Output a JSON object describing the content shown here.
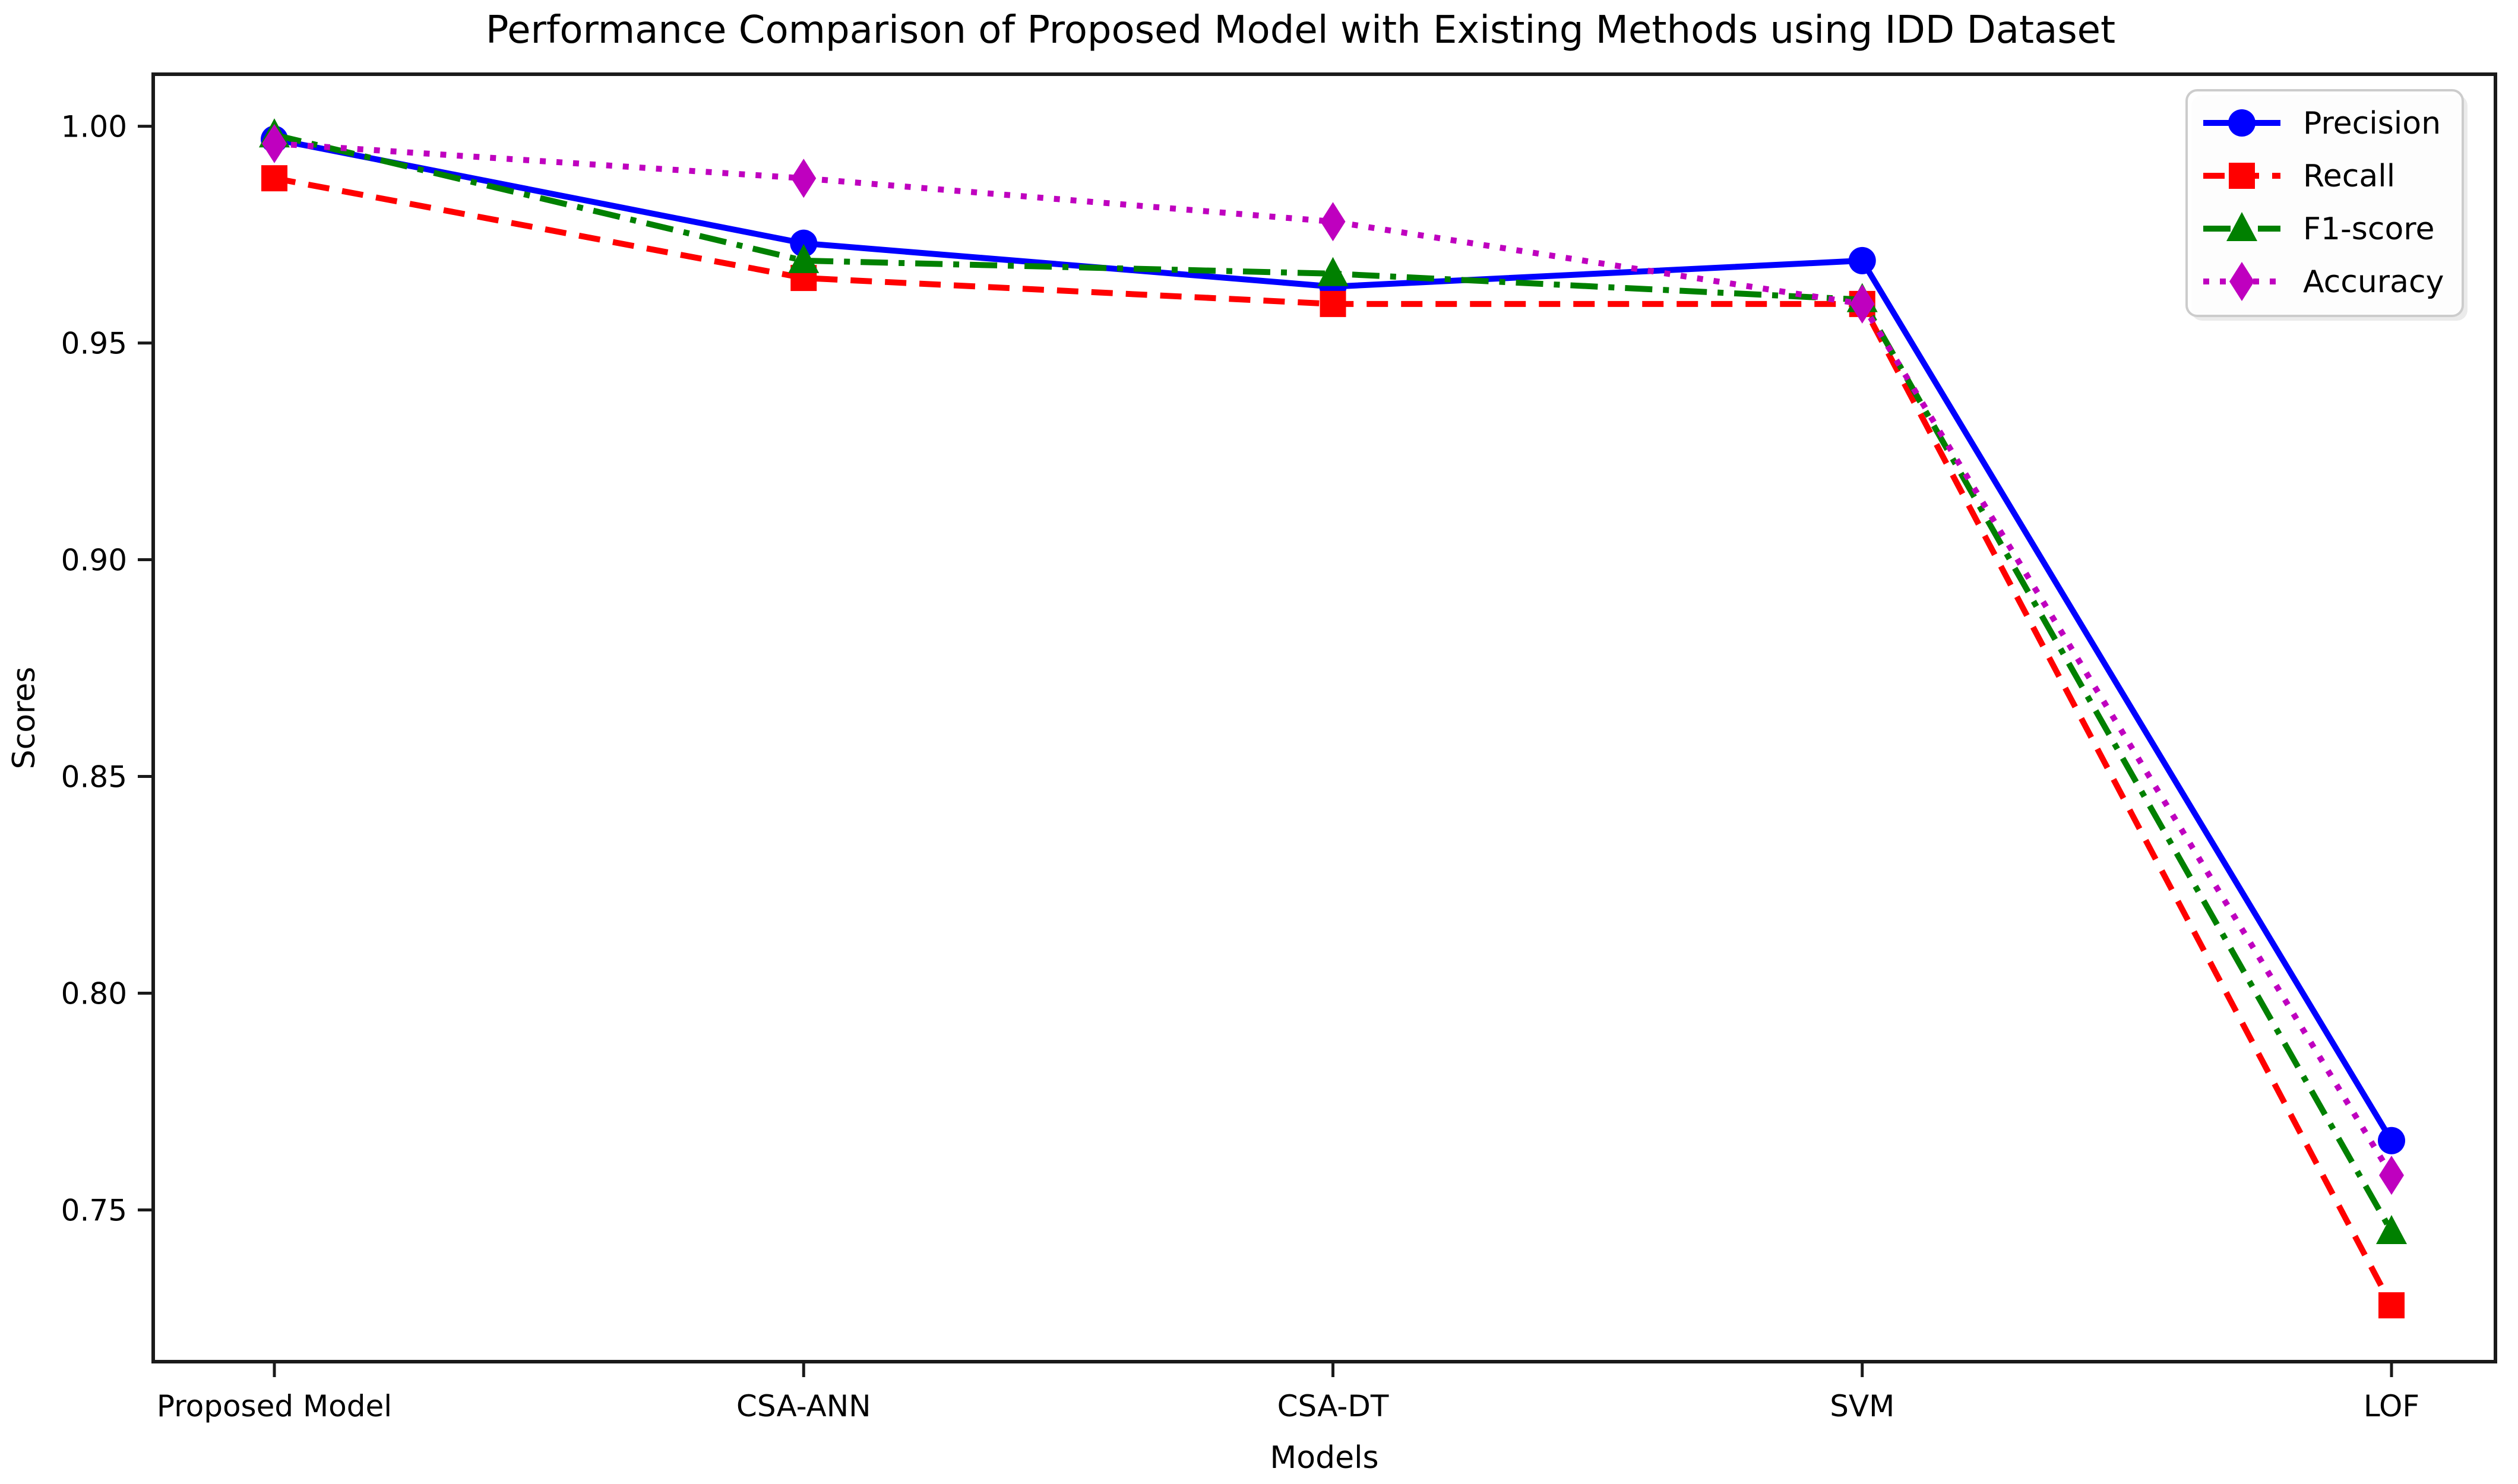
{
  "chart_data": {
    "type": "line",
    "title": "Performance Comparison of Proposed Model with Existing Methods using IDD Dataset",
    "xlabel": "Models",
    "ylabel": "Scores",
    "categories": [
      "Proposed Model",
      "CSA-ANN",
      "CSA-DT",
      "SVM",
      "LOF"
    ],
    "ytick_labels": [
      "1.00",
      "0.95",
      "0.90",
      "0.85",
      "0.80",
      "0.75"
    ],
    "yticks": [
      1.0,
      0.95,
      0.9,
      0.85,
      0.8,
      0.75
    ],
    "ylim": [
      0.715,
      1.012
    ],
    "grid": false,
    "legend_position": "upper right",
    "series": [
      {
        "name": "Precision",
        "color": "#0000ff",
        "linestyle": "solid",
        "marker": "circle",
        "values": [
          0.997,
          0.973,
          0.963,
          0.969,
          0.766
        ]
      },
      {
        "name": "Recall",
        "color": "#ff0000",
        "linestyle": "dashed",
        "marker": "square",
        "values": [
          0.988,
          0.965,
          0.959,
          0.959,
          0.728
        ]
      },
      {
        "name": "F1-score",
        "color": "#008000",
        "linestyle": "dashdot",
        "marker": "triangle",
        "values": [
          0.998,
          0.969,
          0.966,
          0.96,
          0.745
        ]
      },
      {
        "name": "Accuracy",
        "color": "#bf00bf",
        "linestyle": "dotted",
        "marker": "diamond",
        "values": [
          0.996,
          0.988,
          0.978,
          0.959,
          0.758
        ]
      }
    ]
  }
}
